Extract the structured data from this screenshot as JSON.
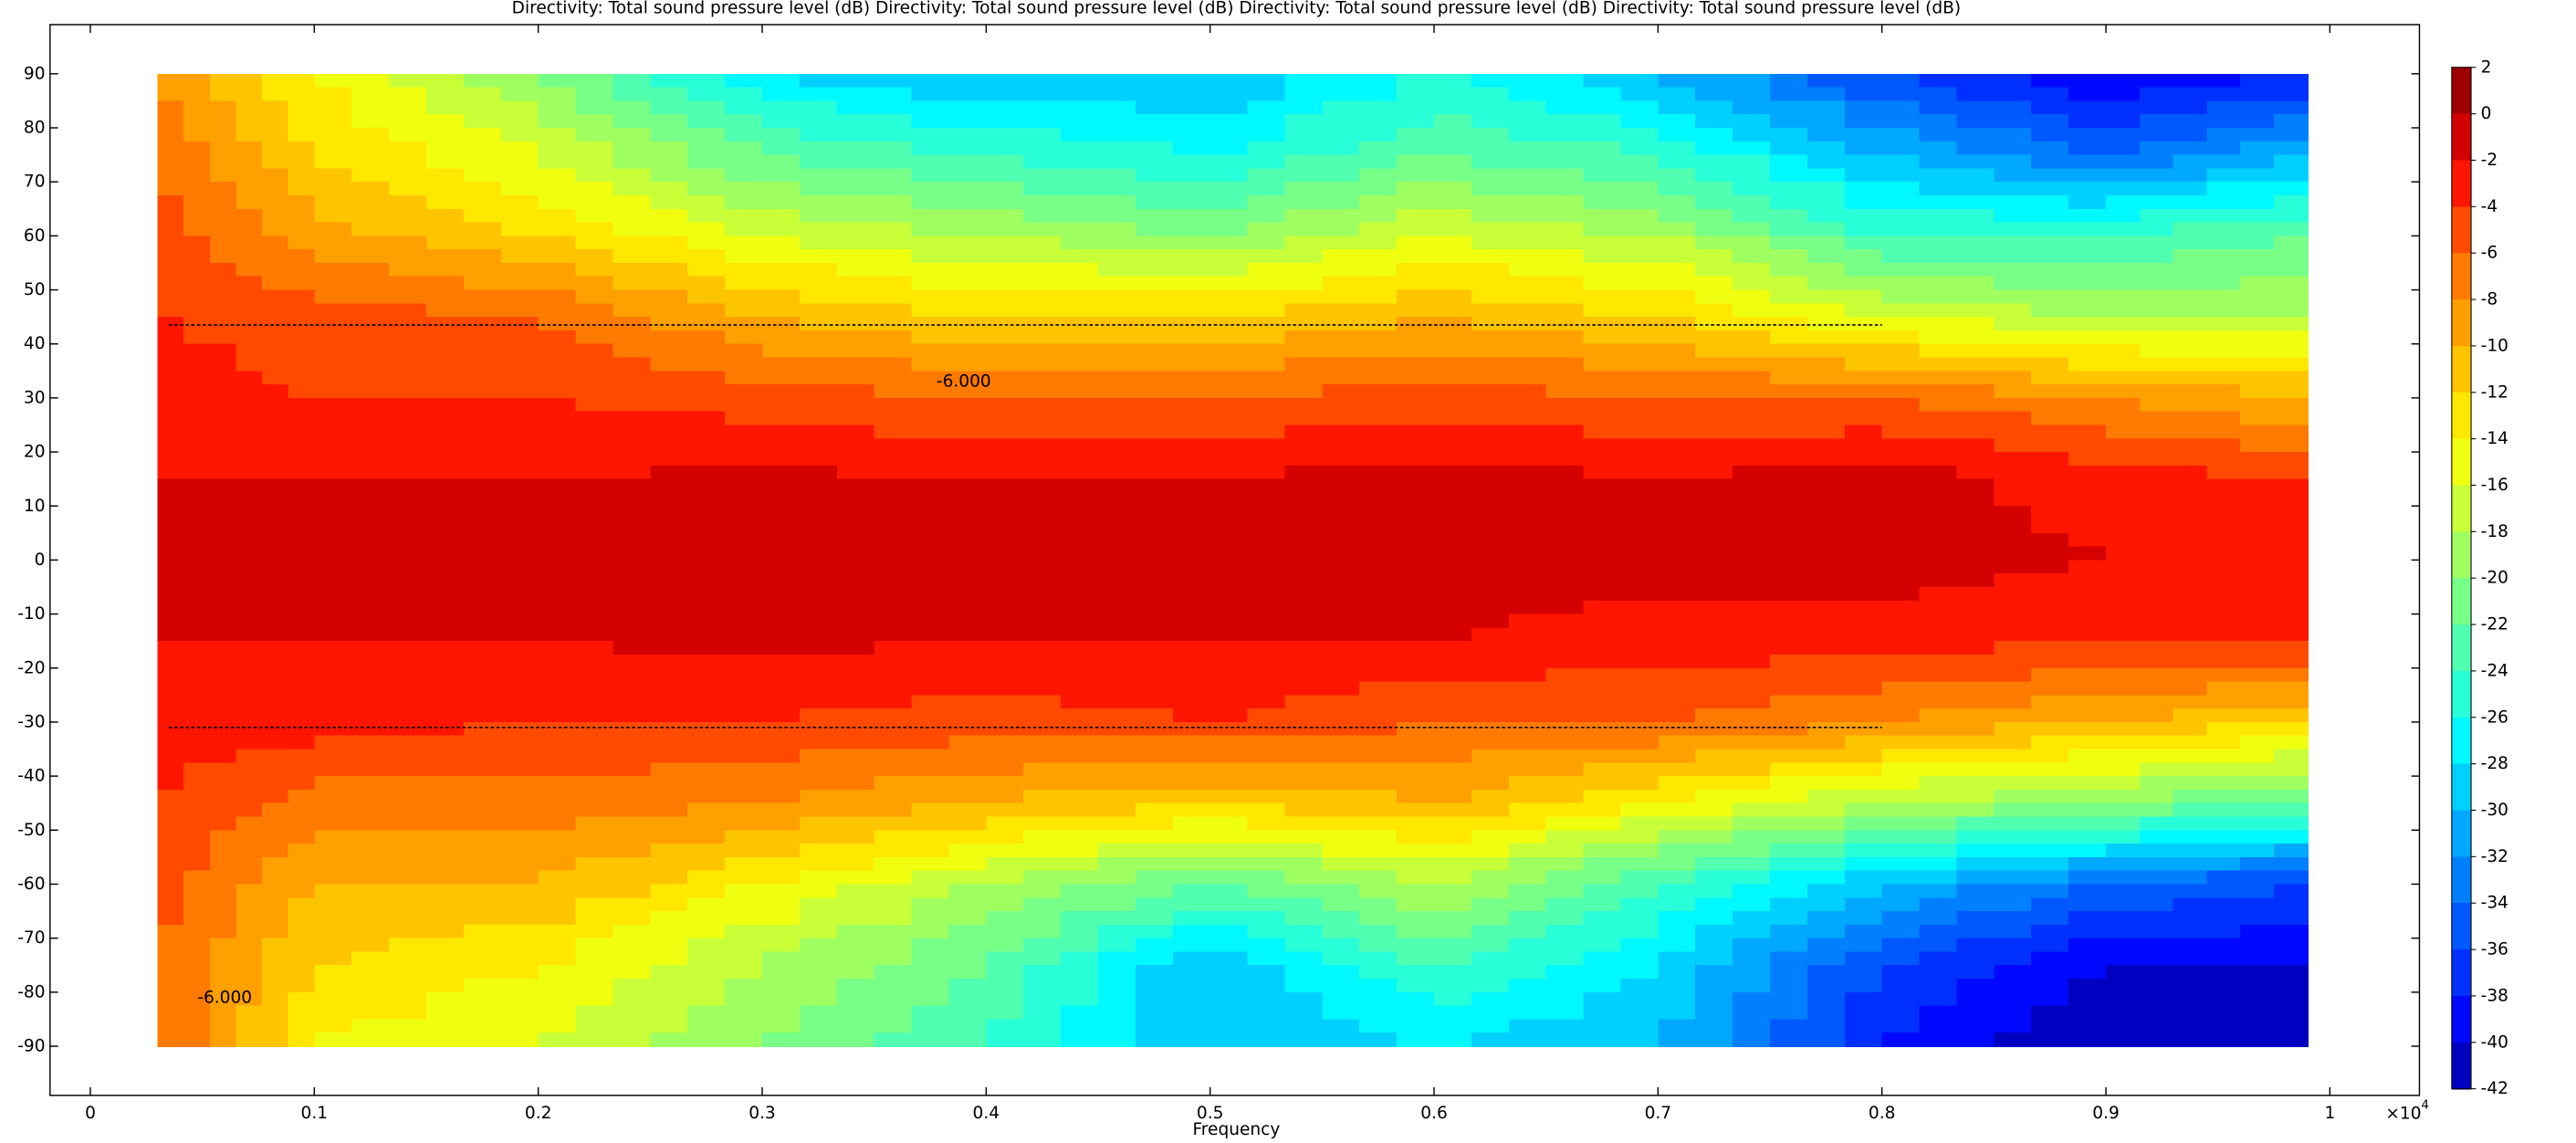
{
  "chart_data": {
    "type": "contour",
    "title": "Directivity: Total sound pressure level (dB)  Directivity: Total sound pressure level (dB)  Directivity: Total sound pressure level (dB)  Directivity: Total sound pressure level (dB)",
    "xlabel": "Frequency",
    "x_multiplier": "×10",
    "x_multiplier_exponent": "4",
    "xlim": [
      -0.018,
      1.04
    ],
    "ylim": [
      -99.1,
      99.1
    ],
    "xticks": [
      0,
      0.1,
      0.2,
      0.3,
      0.4,
      0.5,
      0.6,
      0.7,
      0.8,
      0.9,
      1
    ],
    "yticks": [
      -90,
      -80,
      -70,
      -60,
      -50,
      -40,
      -30,
      -20,
      -10,
      0,
      10,
      20,
      30,
      40,
      50,
      60,
      70,
      80,
      90
    ],
    "x": [
      0.03,
      0.1,
      0.2,
      0.3,
      0.4,
      0.5,
      0.6,
      0.7,
      0.8,
      0.9,
      0.99
    ],
    "y": [
      90,
      75,
      60,
      45,
      30,
      15,
      0,
      -15,
      -30,
      -45,
      -60,
      -75,
      -90
    ],
    "z": [
      [
        -8,
        -14,
        -20,
        -28,
        -30,
        -30,
        -26,
        -30,
        -36,
        -40,
        -38
      ],
      [
        -6,
        -12,
        -16,
        -22,
        -24,
        -26,
        -22,
        -24,
        -30,
        -34,
        -30
      ],
      [
        -5,
        -9,
        -12,
        -16,
        -18,
        -20,
        -16,
        -18,
        -24,
        -24,
        -22
      ],
      [
        -4,
        -5,
        -6,
        -10,
        -12,
        -12,
        -10,
        -12,
        -16,
        -18,
        -18
      ],
      [
        -3,
        -4,
        -4,
        -5,
        -6,
        -6,
        -5,
        -6,
        -6,
        -8,
        -10
      ],
      [
        -2,
        -2,
        -2,
        -1.5,
        -2,
        -2,
        -1,
        -2,
        -1,
        -3,
        -4
      ],
      [
        -1,
        -1,
        -1,
        -0.5,
        -1,
        -1,
        -1,
        -1,
        -1,
        -2,
        -2
      ],
      [
        -2,
        -2,
        -2,
        -1.5,
        -2,
        -2,
        -2,
        -3,
        -3,
        -4,
        -4
      ],
      [
        -3,
        -3,
        -4,
        -4,
        -5,
        -4,
        -6,
        -6,
        -8,
        -10,
        -12
      ],
      [
        -4,
        -7,
        -7,
        -8,
        -10,
        -12,
        -10,
        -14,
        -18,
        -20,
        -22
      ],
      [
        -5,
        -10,
        -10,
        -14,
        -18,
        -22,
        -18,
        -24,
        -30,
        -34,
        -36
      ],
      [
        -6,
        -12,
        -14,
        -18,
        -22,
        -30,
        -24,
        -28,
        -36,
        -40,
        -40
      ],
      [
        -6,
        -14,
        -16,
        -20,
        -24,
        -30,
        -28,
        -30,
        -38,
        -42,
        -40
      ]
    ],
    "colorbar": {
      "ticks": [
        2,
        0,
        -2,
        -4,
        -6,
        -8,
        -10,
        -12,
        -14,
        -16,
        -18,
        -20,
        -22,
        -24,
        -26,
        -28,
        -30,
        -32,
        -34,
        -36,
        -38,
        -40,
        -42
      ],
      "colors": [
        "#9e0000",
        "#d40000",
        "#ff1500",
        "#ff4a00",
        "#ff7a00",
        "#ffa000",
        "#ffc400",
        "#ffe800",
        "#f0ff10",
        "#c8ff38",
        "#a0ff60",
        "#78ff88",
        "#50ffb0",
        "#28ffd8",
        "#00f8ff",
        "#00d0ff",
        "#00a8ff",
        "#0080ff",
        "#0058ff",
        "#0030ff",
        "#0008ff",
        "#0000c0"
      ]
    },
    "reference_lines": [
      {
        "y": 43.5,
        "x": [
          0.035,
          0.8
        ]
      },
      {
        "y": -31,
        "x": [
          0.035,
          0.8
        ]
      }
    ],
    "contour_labels": [
      {
        "text": "-6.000",
        "x": 0.39,
        "y": 33
      },
      {
        "text": "-6.000",
        "x": 0.06,
        "y": -81
      }
    ]
  }
}
